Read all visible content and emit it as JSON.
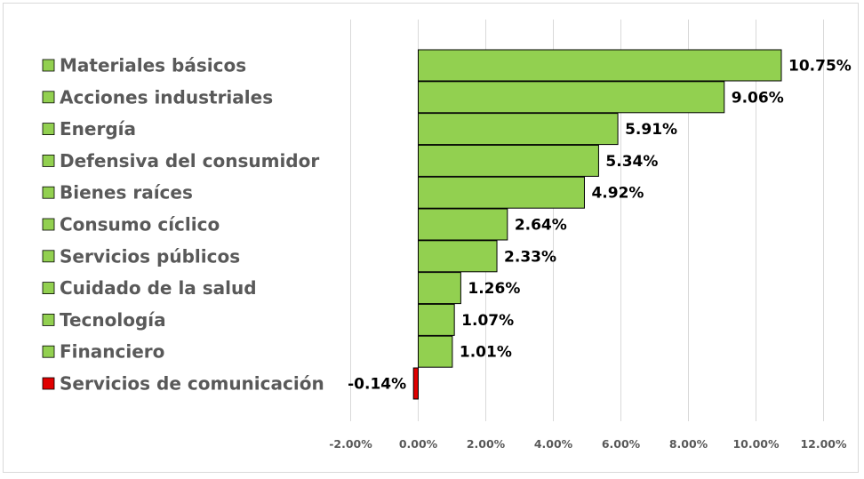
{
  "chart_data": {
    "type": "bar",
    "orientation": "horizontal",
    "categories": [
      "Materiales básicos",
      "Acciones industriales",
      "Energía",
      "Defensiva del consumidor",
      "Bienes raíces",
      "Consumo cíclico",
      "Servicios públicos",
      "Cuidado de la salud",
      "Tecnología",
      "Financiero",
      "Servicios de comunicación"
    ],
    "values": [
      10.75,
      9.06,
      5.91,
      5.34,
      4.92,
      2.64,
      2.33,
      1.26,
      1.07,
      1.01,
      -0.14
    ],
    "value_labels": [
      "10.75%",
      "9.06%",
      "5.91%",
      "5.34%",
      "4.92%",
      "2.64%",
      "2.33%",
      "1.26%",
      "1.07%",
      "1.01%",
      "-0.14%"
    ],
    "x_ticks": [
      -2,
      0,
      2,
      4,
      6,
      8,
      10,
      12
    ],
    "x_tick_labels": [
      "-2.00%",
      "0.00%",
      "2.00%",
      "4.00%",
      "6.00%",
      "8.00%",
      "10.00%",
      "12.00%"
    ],
    "xlim": [
      -2,
      12
    ],
    "title": "",
    "xlabel": "",
    "ylabel": "",
    "grid": "vertical",
    "legend_position": "left",
    "colors": {
      "positive": "#92d050",
      "negative": "#e00000",
      "bar_border": "#000000",
      "gridline": "#d9d9d9",
      "label_text": "#595959",
      "value_text": "#000000"
    }
  }
}
